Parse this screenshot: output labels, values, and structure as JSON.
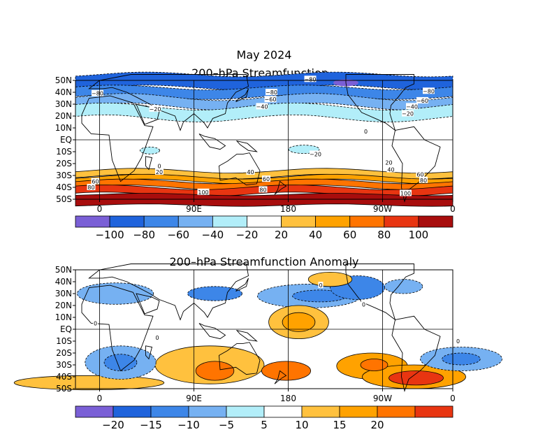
{
  "page": {
    "main_title": "May 2024"
  },
  "chart_data": [
    {
      "type": "heatmap",
      "title": "200–hPa Streamfunction",
      "xlabel": "",
      "ylabel": "",
      "x_ticks": [
        "0",
        "90E",
        "180",
        "90W",
        "0"
      ],
      "y_ticks": [
        "50N",
        "40N",
        "30N",
        "20N",
        "10N",
        "EQ",
        "10S",
        "20S",
        "30S",
        "40S",
        "50S"
      ],
      "colorbar": {
        "labels": [
          "−100",
          "−80",
          "−60",
          "−40",
          "−20",
          "20",
          "40",
          "60",
          "80",
          "100"
        ],
        "colors": [
          "#7a5fd6",
          "#1f63dc",
          "#3d86e8",
          "#76b1f2",
          "#b2eef9",
          "#ffffff",
          "#ffc13e",
          "#ffa200",
          "#ff7400",
          "#e83511",
          "#a80d0d"
        ]
      },
      "contour_labels": [
        {
          "text": "−80",
          "lon": -2,
          "lat": 39
        },
        {
          "text": "−80",
          "lon": 201,
          "lat": 51
        },
        {
          "text": "−80",
          "lon": 164,
          "lat": 40
        },
        {
          "text": "−60",
          "lon": 163,
          "lat": 34
        },
        {
          "text": "−40",
          "lon": 155,
          "lat": 28
        },
        {
          "text": "−20",
          "lon": 53,
          "lat": 26
        },
        {
          "text": "−80",
          "lon": 314,
          "lat": 41
        },
        {
          "text": "−60",
          "lon": 308,
          "lat": 33
        },
        {
          "text": "−40",
          "lon": 298,
          "lat": 28
        },
        {
          "text": "−20",
          "lon": 294,
          "lat": 22
        },
        {
          "text": "0",
          "lon": 254,
          "lat": 7
        },
        {
          "text": "−20",
          "lon": 206,
          "lat": -12
        },
        {
          "text": "0",
          "lon": 57,
          "lat": -22
        },
        {
          "text": "20",
          "lon": 57,
          "lat": -27
        },
        {
          "text": "20",
          "lon": 276,
          "lat": -19
        },
        {
          "text": "40",
          "lon": 278,
          "lat": -25
        },
        {
          "text": "40",
          "lon": 144,
          "lat": -27
        },
        {
          "text": "60",
          "lon": 159,
          "lat": -33
        },
        {
          "text": "80",
          "lon": 156,
          "lat": -42
        },
        {
          "text": "60",
          "lon": 306,
          "lat": -29
        },
        {
          "text": "80",
          "lon": 309,
          "lat": -34
        },
        {
          "text": "60",
          "lon": -4,
          "lat": -35
        },
        {
          "text": "80",
          "lon": -8,
          "lat": -40
        },
        {
          "text": "100",
          "lon": 99,
          "lat": -44
        },
        {
          "text": "100",
          "lon": 292,
          "lat": -45
        }
      ]
    },
    {
      "type": "heatmap",
      "title": "200–hPa Streamfunction Anomaly",
      "xlabel": "",
      "ylabel": "",
      "x_ticks": [
        "0",
        "90E",
        "180",
        "90W",
        "0"
      ],
      "y_ticks": [
        "50N",
        "40N",
        "30N",
        "20N",
        "10N",
        "EQ",
        "10S",
        "20S",
        "30S",
        "40S",
        "50S"
      ],
      "colorbar": {
        "labels": [
          "−20",
          "−15",
          "−10",
          "−5",
          "5",
          "10",
          "15",
          "20"
        ],
        "colors": [
          "#7a5fd6",
          "#1f63dc",
          "#3d86e8",
          "#76b1f2",
          "#b2eef9",
          "#ffffff",
          "#ffc13e",
          "#ffa200",
          "#ff7400",
          "#e83511"
        ]
      },
      "contour_labels": [
        {
          "text": "0",
          "lon": 252,
          "lat": 21
        },
        {
          "text": "0",
          "lon": 211,
          "lat": 37
        },
        {
          "text": "0",
          "lon": -4,
          "lat": 5
        },
        {
          "text": "0",
          "lon": 342,
          "lat": -10
        },
        {
          "text": "0",
          "lon": 55,
          "lat": -7
        }
      ]
    }
  ]
}
